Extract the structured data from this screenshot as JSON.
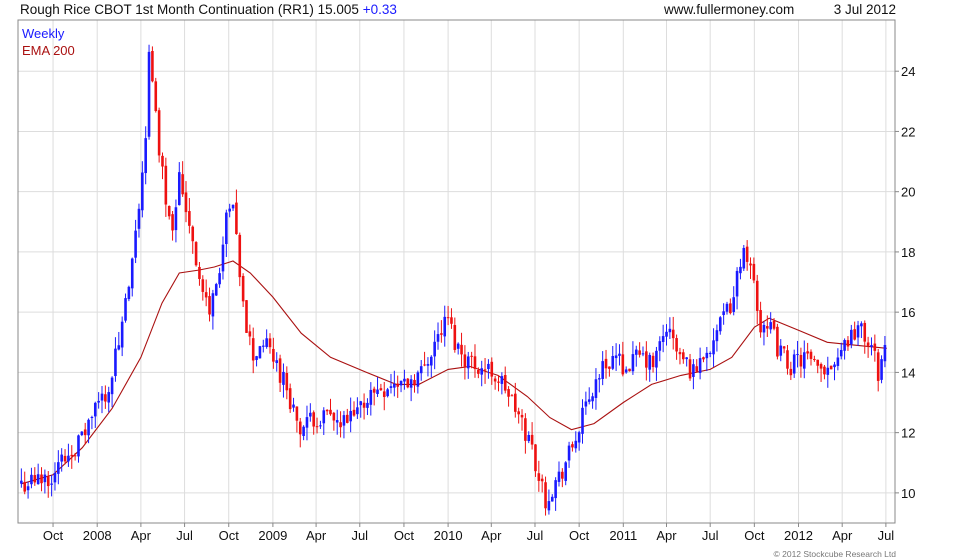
{
  "header": {
    "title": "Rough Rice CBOT 1st Month Continuation (RR1) 15.005",
    "change": "+0.33",
    "site": "www.fullermoney.com",
    "date": "3 Jul 2012"
  },
  "footer": {
    "copyright": "© 2012 Stockcube Research Ltd"
  },
  "colors": {
    "up": "#1a1aff",
    "down": "#ee1111",
    "ema": "#aa1111",
    "grid": "#dddddd",
    "axis": "#888888"
  },
  "chart_data": {
    "type": "candlestick",
    "title": "Rough Rice CBOT 1st Month Continuation (RR1) 15.005 +0.33",
    "legend": [
      "Weekly",
      "EMA 200"
    ],
    "legend_placement": "top-left",
    "yaxis_position": "right",
    "grid": true,
    "ylim": [
      9,
      25.7
    ],
    "y_ticks": [
      10,
      12,
      14,
      16,
      18,
      20,
      22,
      24
    ],
    "xlim": [
      "2007-07-20",
      "2012-07-20"
    ],
    "x_ticks": [
      {
        "date": "2007-10-01",
        "label": "Oct"
      },
      {
        "date": "2008-01-01",
        "label": "2008"
      },
      {
        "date": "2008-04-01",
        "label": "Apr"
      },
      {
        "date": "2008-07-01",
        "label": "Jul"
      },
      {
        "date": "2008-10-01",
        "label": "Oct"
      },
      {
        "date": "2009-01-01",
        "label": "2009"
      },
      {
        "date": "2009-04-01",
        "label": "Apr"
      },
      {
        "date": "2009-07-01",
        "label": "Jul"
      },
      {
        "date": "2009-10-01",
        "label": "Oct"
      },
      {
        "date": "2010-01-01",
        "label": "2010"
      },
      {
        "date": "2010-04-01",
        "label": "Apr"
      },
      {
        "date": "2010-07-01",
        "label": "Jul"
      },
      {
        "date": "2010-10-01",
        "label": "Oct"
      },
      {
        "date": "2011-01-01",
        "label": "2011"
      },
      {
        "date": "2011-04-01",
        "label": "Apr"
      },
      {
        "date": "2011-07-01",
        "label": "Jul"
      },
      {
        "date": "2011-10-01",
        "label": "Oct"
      },
      {
        "date": "2012-01-01",
        "label": "2012"
      },
      {
        "date": "2012-04-01",
        "label": "Apr"
      },
      {
        "date": "2012-07-01",
        "label": "Jul"
      }
    ],
    "series": [
      {
        "name": "Weekly",
        "kind": "weekly-close",
        "x": [
          "2007-07-27",
          "2007-08-31",
          "2007-09-28",
          "2007-10-26",
          "2007-11-30",
          "2007-12-28",
          "2008-01-25",
          "2008-02-22",
          "2008-03-14",
          "2008-03-28",
          "2008-04-11",
          "2008-04-18",
          "2008-04-25",
          "2008-05-09",
          "2008-05-23",
          "2008-06-06",
          "2008-06-20",
          "2008-07-04",
          "2008-07-18",
          "2008-08-01",
          "2008-08-22",
          "2008-09-12",
          "2008-09-26",
          "2008-10-10",
          "2008-10-24",
          "2008-11-07",
          "2008-11-21",
          "2008-12-12",
          "2009-01-02",
          "2009-01-30",
          "2009-02-27",
          "2009-03-27",
          "2009-04-24",
          "2009-05-22",
          "2009-06-19",
          "2009-07-17",
          "2009-08-14",
          "2009-09-11",
          "2009-10-09",
          "2009-11-06",
          "2009-12-04",
          "2010-01-01",
          "2010-01-15",
          "2010-02-05",
          "2010-03-05",
          "2010-04-02",
          "2010-04-30",
          "2010-05-28",
          "2010-06-25",
          "2010-07-09",
          "2010-07-23",
          "2010-08-20",
          "2010-09-17",
          "2010-10-15",
          "2010-11-12",
          "2010-12-10",
          "2011-01-07",
          "2011-02-04",
          "2011-03-04",
          "2011-04-01",
          "2011-04-29",
          "2011-05-27",
          "2011-06-24",
          "2011-07-22",
          "2011-08-19",
          "2011-09-02",
          "2011-09-16",
          "2011-09-30",
          "2011-10-14",
          "2011-10-28",
          "2011-11-18",
          "2011-12-16",
          "2012-01-13",
          "2012-02-10",
          "2012-03-09",
          "2012-04-06",
          "2012-05-04",
          "2012-06-01",
          "2012-06-15",
          "2012-06-29"
        ],
        "values": [
          10.3,
          10.4,
          10.6,
          11.2,
          11.8,
          12.8,
          13.5,
          15.5,
          17.5,
          19.5,
          22.0,
          24.5,
          23.5,
          21.5,
          19.8,
          19.0,
          20.5,
          19.5,
          18.5,
          17.0,
          16.0,
          17.5,
          19.0,
          19.5,
          17.0,
          15.5,
          14.5,
          15.0,
          14.5,
          13.5,
          12.0,
          12.5,
          12.5,
          12.2,
          12.5,
          13.2,
          13.5,
          13.6,
          13.7,
          14.0,
          15.0,
          15.8,
          15.0,
          14.5,
          14.2,
          14.0,
          13.5,
          12.5,
          11.5,
          10.5,
          9.8,
          10.5,
          11.5,
          12.8,
          14.0,
          14.5,
          14.2,
          14.5,
          14.2,
          15.5,
          14.5,
          14.0,
          14.8,
          15.5,
          16.5,
          17.8,
          18.0,
          17.0,
          15.5,
          15.8,
          14.8,
          14.2,
          14.5,
          14.0,
          14.3,
          15.0,
          15.5,
          14.8,
          14.0,
          14.8
        ]
      },
      {
        "name": "EMA 200",
        "x": [
          "2007-07-27",
          "2007-10-01",
          "2007-12-01",
          "2008-02-01",
          "2008-04-01",
          "2008-05-15",
          "2008-06-20",
          "2008-08-01",
          "2008-09-01",
          "2008-10-10",
          "2008-11-15",
          "2009-01-01",
          "2009-03-01",
          "2009-05-01",
          "2009-07-15",
          "2009-09-15",
          "2009-11-01",
          "2010-01-01",
          "2010-02-15",
          "2010-04-15",
          "2010-06-15",
          "2010-08-01",
          "2010-09-15",
          "2010-11-01",
          "2011-01-01",
          "2011-03-01",
          "2011-05-01",
          "2011-07-01",
          "2011-08-15",
          "2011-10-01",
          "2011-11-01",
          "2012-01-01",
          "2012-03-01",
          "2012-05-01",
          "2012-07-03"
        ],
        "values": [
          10.3,
          10.6,
          11.5,
          12.8,
          14.5,
          16.3,
          17.3,
          17.4,
          17.5,
          17.7,
          17.3,
          16.5,
          15.3,
          14.5,
          14.0,
          13.6,
          13.6,
          14.1,
          14.2,
          13.9,
          13.2,
          12.5,
          12.1,
          12.3,
          13.0,
          13.6,
          13.9,
          14.1,
          14.5,
          15.5,
          15.8,
          15.4,
          15.0,
          14.9,
          14.8
        ]
      }
    ]
  }
}
